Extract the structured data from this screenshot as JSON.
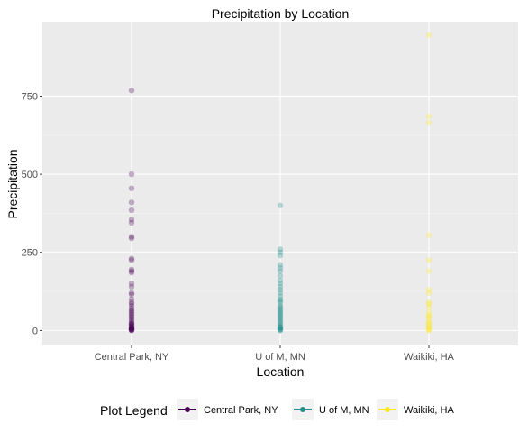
{
  "chart_data": {
    "type": "scatter",
    "title": "Precipitation by Location",
    "xlabel": "Location",
    "ylabel": "Precipitation",
    "categories": [
      "Central Park, NY",
      "U of M, MN",
      "Waikiki, HA"
    ],
    "yticks": [
      0,
      250,
      500,
      750
    ],
    "ylim": [
      -48,
      988
    ],
    "grid": true,
    "legend": {
      "title": "Plot Legend",
      "position": "bottom",
      "entries": [
        "Central Park, NY",
        "U of M, MN",
        "Waikiki, HA"
      ]
    },
    "colors": [
      "#440154",
      "#21908C",
      "#FDE725"
    ],
    "series": [
      {
        "name": "Central Park, NY",
        "values": [
          768,
          500,
          455,
          410,
          385,
          355,
          345,
          300,
          295,
          230,
          225,
          195,
          190,
          185,
          150,
          140,
          120,
          115,
          100,
          90,
          85,
          78,
          70,
          65,
          60,
          55,
          50,
          45,
          40,
          35,
          30,
          25,
          22,
          20,
          18,
          15,
          12,
          10,
          8,
          6,
          5,
          4,
          3,
          2,
          1,
          0
        ]
      },
      {
        "name": "U of M, MN",
        "values": [
          400,
          260,
          250,
          240,
          210,
          200,
          190,
          175,
          160,
          150,
          140,
          130,
          120,
          110,
          100,
          95,
          90,
          80,
          75,
          70,
          65,
          60,
          55,
          50,
          45,
          40,
          35,
          30,
          25,
          20,
          15,
          12,
          10,
          8,
          5,
          3,
          2,
          0
        ]
      },
      {
        "name": "Waikiki, HA",
        "values": [
          945,
          685,
          665,
          305,
          225,
          190,
          130,
          120,
          90,
          85,
          75,
          60,
          50,
          45,
          40,
          30,
          25,
          20,
          15,
          10,
          5,
          2,
          0
        ]
      }
    ]
  }
}
